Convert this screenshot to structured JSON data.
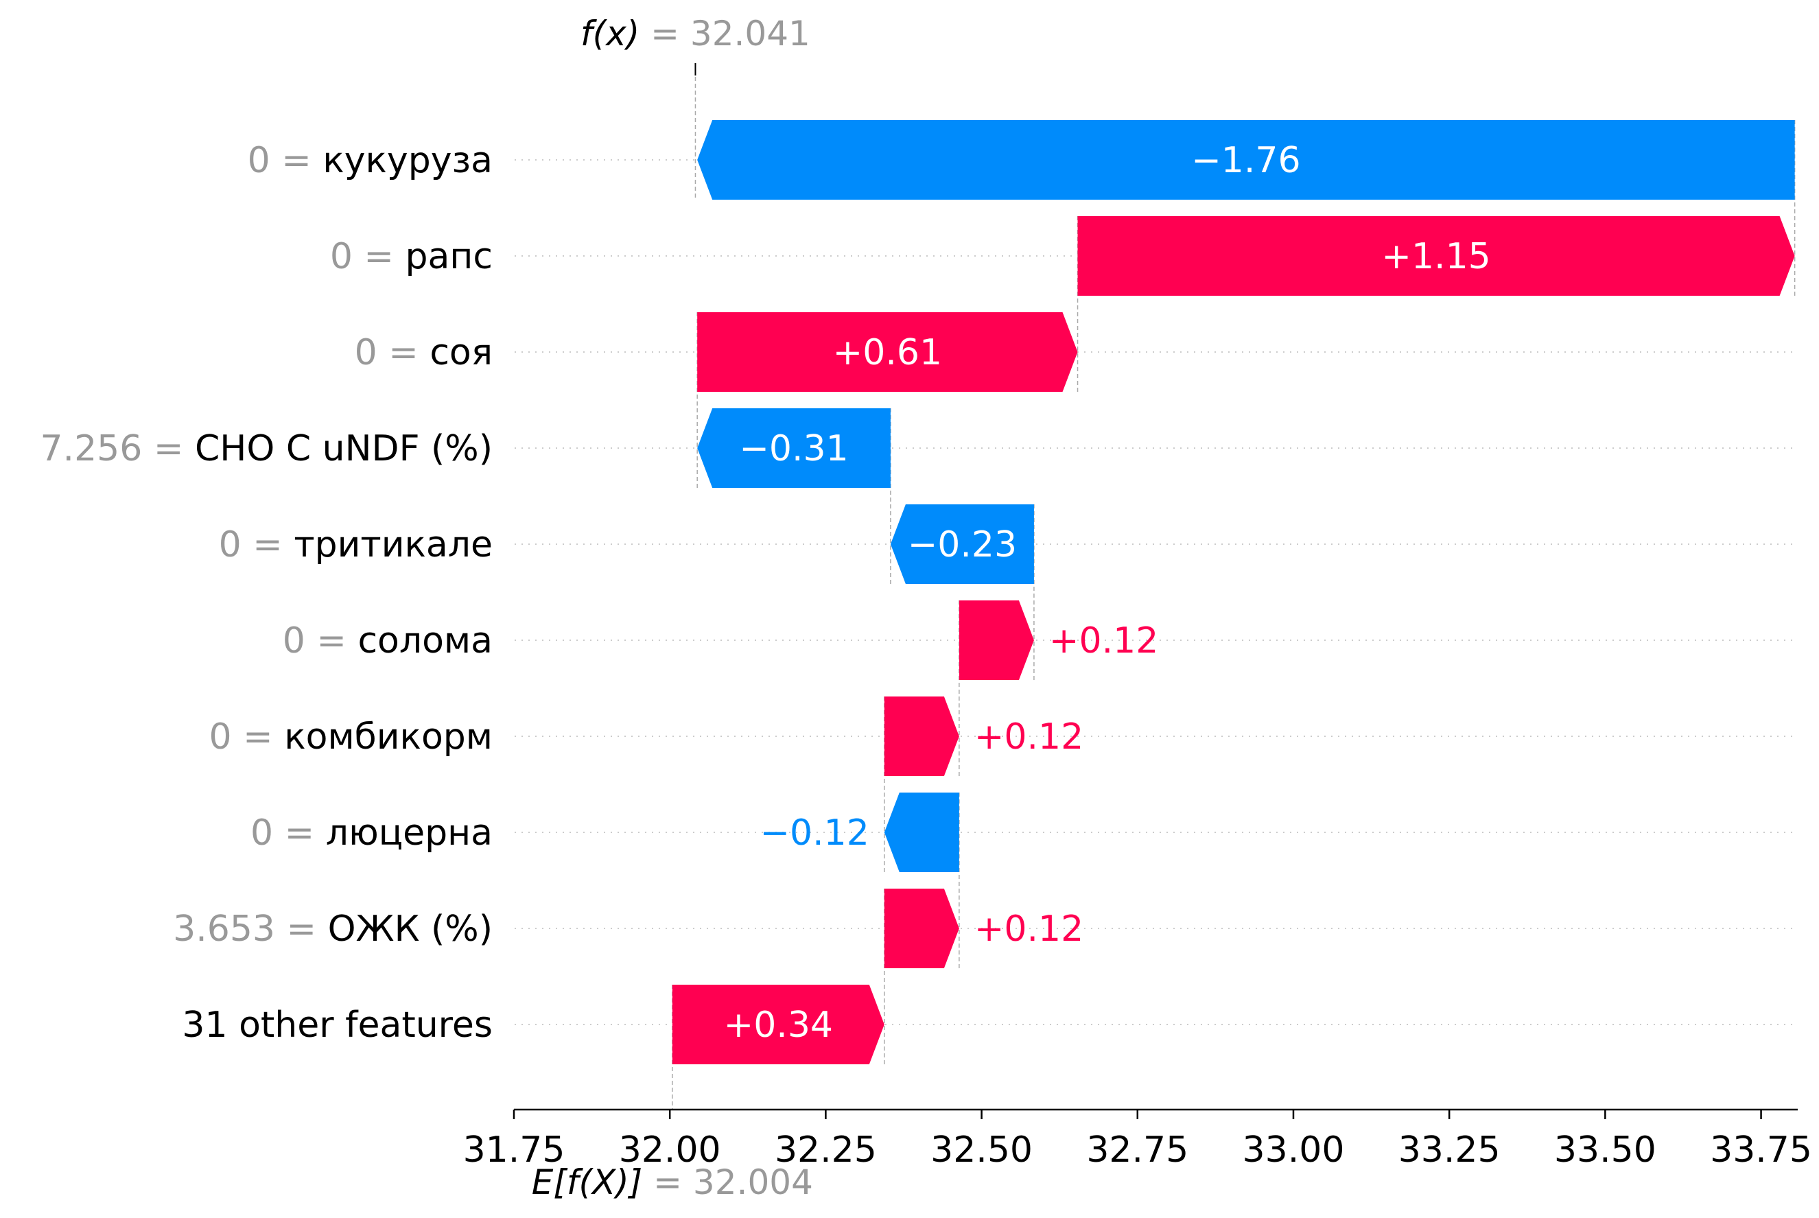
{
  "chart_data": {
    "type": "waterfall",
    "fx": {
      "label": "f(x)",
      "equals": "=",
      "value": "32.041",
      "numeric": 32.041
    },
    "base": {
      "label": "E[f(X)]",
      "equals": "=",
      "value": "32.004",
      "numeric": 32.004
    },
    "features": [
      {
        "value": "0",
        "equals": "=",
        "name": "кукуруза",
        "contribution": -1.76,
        "label": "−1.76"
      },
      {
        "value": "0",
        "equals": "=",
        "name": "рапс",
        "contribution": 1.15,
        "label": "+1.15"
      },
      {
        "value": "0",
        "equals": "=",
        "name": "соя",
        "contribution": 0.61,
        "label": "+0.61"
      },
      {
        "value": "7.256",
        "equals": "=",
        "name": "CHO C uNDF (%)",
        "contribution": -0.31,
        "label": "−0.31"
      },
      {
        "value": "0",
        "equals": "=",
        "name": "тритикале",
        "contribution": -0.23,
        "label": "−0.23"
      },
      {
        "value": "0",
        "equals": "=",
        "name": "солома",
        "contribution": 0.12,
        "label": "+0.12"
      },
      {
        "value": "0",
        "equals": "=",
        "name": "комбикорм",
        "contribution": 0.12,
        "label": "+0.12"
      },
      {
        "value": "0",
        "equals": "=",
        "name": "люцерна",
        "contribution": -0.12,
        "label": "−0.12"
      },
      {
        "value": "3.653",
        "equals": "=",
        "name": "ОЖК (%)",
        "contribution": 0.12,
        "label": "+0.12"
      },
      {
        "value": "",
        "equals": "",
        "name": "31 other features",
        "contribution": 0.34,
        "label": "+0.34"
      }
    ],
    "xlim": [
      31.75,
      33.8
    ],
    "xticks": [
      "31.75",
      "32.00",
      "32.25",
      "32.50",
      "32.75",
      "33.00",
      "33.25",
      "33.50",
      "33.75"
    ],
    "colors": {
      "positive": "#ff0051",
      "negative": "#008bfb",
      "muted": "#999999",
      "grid": "#cccccc"
    }
  }
}
